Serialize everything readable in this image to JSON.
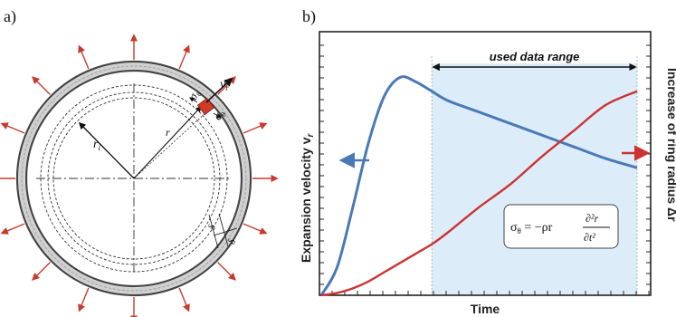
{
  "panel_a": {
    "label": "a)",
    "symbols": {
      "sigma_theta": "σθ",
      "sigma_r": "σr",
      "v_r": "vr",
      "r_i": "ri",
      "r": "r",
      "delta_1": "δ",
      "delta_2": "δ"
    }
  },
  "panel_b": {
    "label": "b)",
    "used_range_label": "used data range",
    "x_axis_label": "Time",
    "y_left_label": "Expansion velocity v",
    "y_left_sub": "r",
    "y_right_label": "Increase of ring radius Δr",
    "formula": "σθ = −ρr ∂²r/∂t²"
  },
  "chart_data": {
    "type": "line",
    "xlabel": "Time",
    "ylabel": "Expansion velocity vr",
    "ylabel_right": "Increase of ring radius Δr",
    "x": [
      0,
      0.05,
      0.1,
      0.15,
      0.2,
      0.25,
      0.3,
      0.35,
      0.4,
      0.5,
      0.6,
      0.7,
      0.8,
      0.9,
      1.0
    ],
    "series": [
      {
        "name": "Expansion velocity vr",
        "color": "#4a7ab5",
        "values": [
          0,
          0.12,
          0.38,
          0.66,
          0.86,
          0.94,
          0.92,
          0.88,
          0.84,
          0.79,
          0.74,
          0.69,
          0.64,
          0.59,
          0.55
        ]
      },
      {
        "name": "Increase of ring radius Δr",
        "color": "#cc3333",
        "values": [
          0,
          0.01,
          0.03,
          0.06,
          0.1,
          0.14,
          0.18,
          0.22,
          0.27,
          0.38,
          0.48,
          0.6,
          0.71,
          0.82,
          0.88
        ]
      }
    ],
    "shaded_range_x": [
      0.35,
      1.0
    ],
    "ylim": [
      0,
      1
    ],
    "grid": false,
    "legend": "arrows pointing to axes"
  }
}
